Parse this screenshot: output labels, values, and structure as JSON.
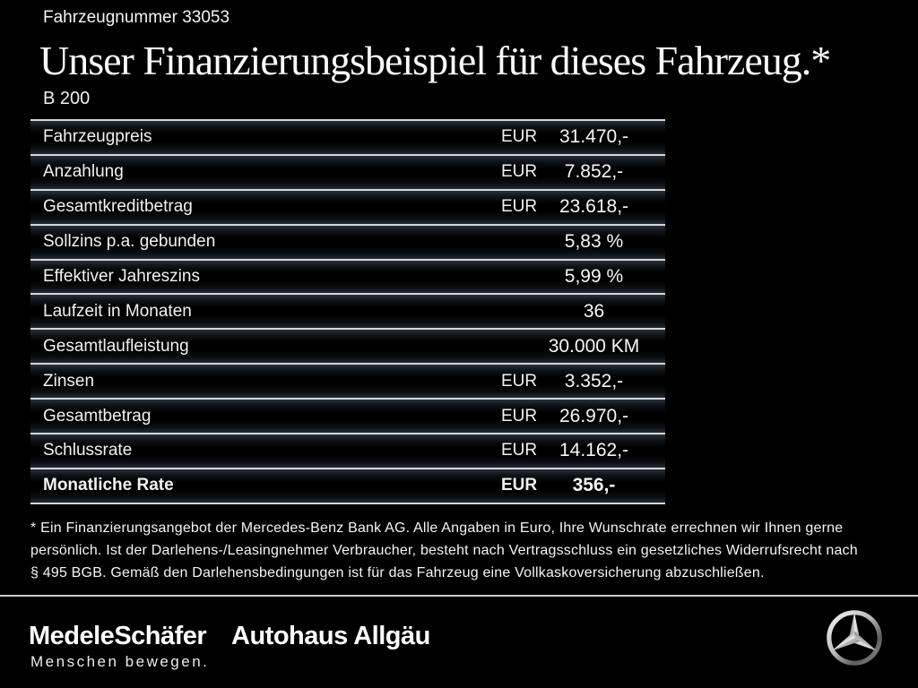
{
  "header": {
    "vehicle_number": "Fahrzeugnummer 33053",
    "title": "Unser Finanzierungsbeispiel für dieses Fahrzeug.*",
    "model": "B 200"
  },
  "financing_table": {
    "rows": [
      {
        "label": "Fahrzeugpreis",
        "currency": "EUR",
        "value": "31.470,-",
        "bold": false
      },
      {
        "label": "Anzahlung",
        "currency": "EUR",
        "value": "7.852,-",
        "bold": false
      },
      {
        "label": "Gesamtkreditbetrag",
        "currency": "EUR",
        "value": "23.618,-",
        "bold": false
      },
      {
        "label": "Sollzins p.a. gebunden",
        "currency": "",
        "value": "5,83 %",
        "bold": false
      },
      {
        "label": "Effektiver Jahreszins",
        "currency": "",
        "value": "5,99 %",
        "bold": false
      },
      {
        "label": "Laufzeit in Monaten",
        "currency": "",
        "value": "36",
        "bold": false
      },
      {
        "label": "Gesamtlaufleistung",
        "currency": "",
        "value": "30.000 KM",
        "bold": false
      },
      {
        "label": "Zinsen",
        "currency": "EUR",
        "value": "3.352,-",
        "bold": false
      },
      {
        "label": "Gesamtbetrag",
        "currency": "EUR",
        "value": "26.970,-",
        "bold": false
      },
      {
        "label": "Schlussrate",
        "currency": "EUR",
        "value": "14.162,-",
        "bold": false
      },
      {
        "label": "Monatliche Rate",
        "currency": "EUR",
        "value": "356,-",
        "bold": true
      }
    ]
  },
  "footnote": {
    "lines": [
      "* Ein Finanzierungsangebot der Mercedes-Benz Bank AG. Alle Angaben in Euro, Ihre Wunschrate errechnen wir Ihnen gerne",
      "persönlich. Ist der Darlehens-/Leasingnehmer Verbraucher, besteht nach Vertragsschluss ein gesetzliches Widerrufsrecht nach",
      "§ 495 BGB. Gemäß den Darlehensbedingungen ist für das Fahrzeug eine Vollkaskoversicherung abzuschließen."
    ]
  },
  "footer": {
    "dealer_logo_1": "MedeleSchäfer",
    "dealer_logo_2": "Autohaus Allgäu",
    "tagline": "Menschen bewegen.",
    "brand_icon": "mercedes-star-icon"
  },
  "colors": {
    "background": "#000000",
    "separator_line": "#d4d8da",
    "row_sheen": "#2b333e",
    "text": "#f2f2f2"
  }
}
